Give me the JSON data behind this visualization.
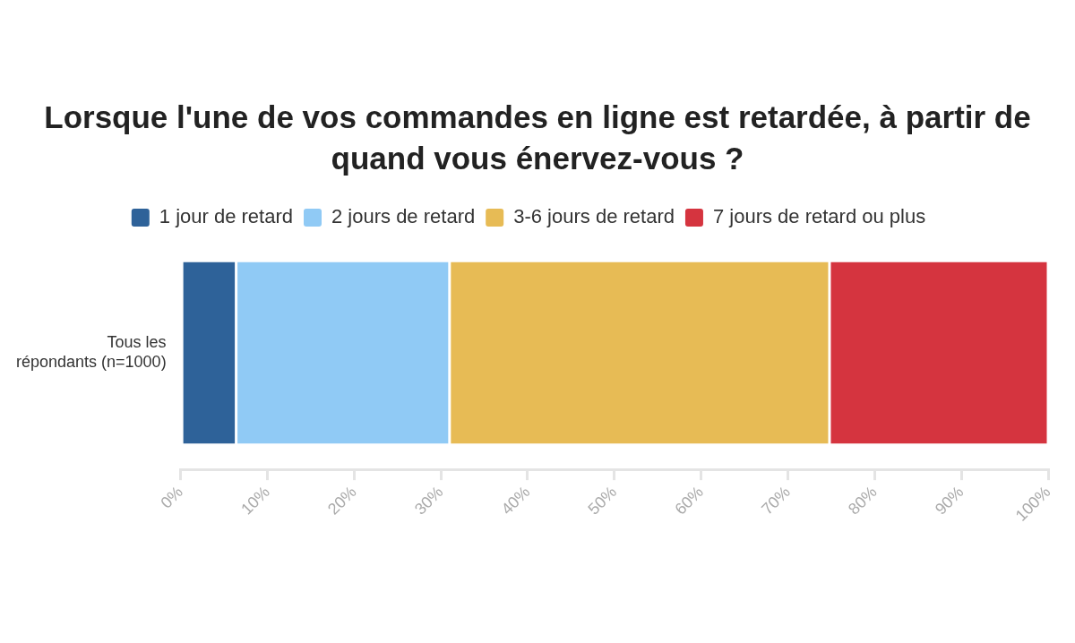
{
  "chart_data": {
    "type": "bar",
    "orientation": "horizontal",
    "stacked": true,
    "title": "Lorsque l'une de vos commandes en ligne est retardée, à partir de quand vous énervez-vous ?",
    "categories": [
      "Tous les répondants (n=1000)"
    ],
    "series": [
      {
        "name": "1 jour de retard",
        "color": "#2e6299",
        "values": [
          6.4
        ]
      },
      {
        "name": "2 jours de retard",
        "color": "#90caf5",
        "values": [
          24.6
        ]
      },
      {
        "name": "3-6 jours de retard",
        "color": "#e7bb55",
        "values": [
          43.8
        ]
      },
      {
        "name": "7 jours de retard ou plus",
        "color": "#d5343f",
        "values": [
          25.2
        ]
      }
    ],
    "xlim": [
      0,
      100
    ],
    "xticks": [
      {
        "value": 0,
        "label": "0%"
      },
      {
        "value": 10,
        "label": "10%"
      },
      {
        "value": 20,
        "label": "20%"
      },
      {
        "value": 30,
        "label": "30%"
      },
      {
        "value": 40,
        "label": "40%"
      },
      {
        "value": 50,
        "label": "50%"
      },
      {
        "value": 60,
        "label": "60%"
      },
      {
        "value": 70,
        "label": "70%"
      },
      {
        "value": 80,
        "label": "80%"
      },
      {
        "value": 90,
        "label": "90%"
      },
      {
        "value": 100,
        "label": "100%"
      }
    ],
    "legend": "top",
    "grid": false
  }
}
